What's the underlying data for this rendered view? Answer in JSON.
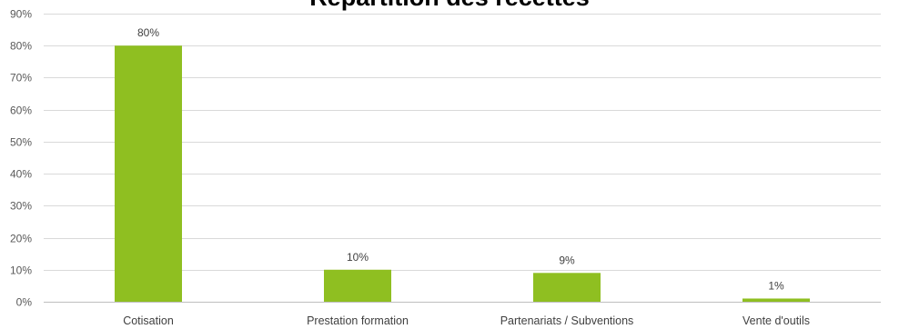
{
  "chart_data": {
    "type": "bar",
    "title": "Répartition des recettes",
    "categories": [
      "Cotisation",
      "Prestation formation",
      "Partenariats / Subventions",
      "Vente d'outils"
    ],
    "values": [
      80,
      10,
      9,
      1
    ],
    "data_labels": [
      "80%",
      "10%",
      "9%",
      "1%"
    ],
    "y_ticks": [
      "0%",
      "10%",
      "20%",
      "30%",
      "40%",
      "50%",
      "60%",
      "70%",
      "80%",
      "90%"
    ],
    "ylim": [
      0,
      90
    ],
    "xlabel": "",
    "ylabel": "",
    "grid": true,
    "legend": "none",
    "bar_color": "#8fbf21",
    "grid_color": "#d9d9d9"
  }
}
